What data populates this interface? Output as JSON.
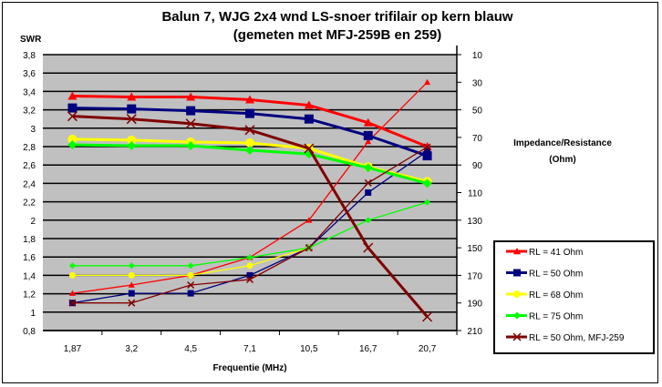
{
  "chart_data": {
    "type": "line",
    "title": "Balun 7, WJG 2x4 wnd LS-snoer trifilair op kern blauw",
    "subtitle": "(gemeten met MFJ-259B en 259)",
    "xlabel": "Frequentie (MHz)",
    "ylabel": "SWR",
    "y2label": "Impedance/Resistance (Ohm)",
    "categories": [
      "1,87",
      "3,2",
      "4,5",
      "7,1",
      "10,5",
      "16,7",
      "20,7"
    ],
    "ylim": [
      0.8,
      3.8
    ],
    "yticks": [
      "0,8",
      "1",
      "1,2",
      "1,4",
      "1,6",
      "1,8",
      "2",
      "2,2",
      "2,4",
      "2,6",
      "2,8",
      "3",
      "3,2",
      "3,4",
      "3,6",
      "3,8"
    ],
    "y2lim": [
      210,
      10
    ],
    "y2ticks": [
      "10",
      "30",
      "50",
      "70",
      "90",
      "110",
      "130",
      "150",
      "170",
      "190",
      "210"
    ],
    "grid": true,
    "legend": "right",
    "series": [
      {
        "name": "RL = 41 Ohm",
        "color": "#ff0000",
        "marker": "triangle",
        "swr": [
          3.35,
          3.34,
          3.34,
          3.31,
          3.25,
          3.06,
          2.8
        ],
        "impedance": [
          183,
          177,
          170,
          157,
          130,
          73,
          30
        ]
      },
      {
        "name": "RL = 50 Ohm",
        "color": "#000080",
        "marker": "square",
        "swr": [
          3.22,
          3.21,
          3.19,
          3.16,
          3.1,
          2.92,
          2.7
        ],
        "impedance": [
          190,
          183,
          183,
          170,
          150,
          110,
          80
        ]
      },
      {
        "name": "RL = 68 Ohm",
        "color": "#ffff00",
        "marker": "circle",
        "swr": [
          2.88,
          2.87,
          2.85,
          2.84,
          2.78,
          2.58,
          2.42
        ],
        "impedance": [
          170,
          170,
          170,
          163,
          150,
          null,
          null
        ]
      },
      {
        "name": "RL = 75 Ohm",
        "color": "#00ff00",
        "marker": "diamond",
        "swr": [
          2.82,
          2.81,
          2.81,
          2.76,
          2.72,
          2.57,
          2.4
        ],
        "impedance": [
          163,
          163,
          163,
          157,
          150,
          130,
          117
        ]
      },
      {
        "name": "RL = 50 Ohm, MFJ-259",
        "color": "#800000",
        "marker": "x",
        "swr": [
          3.13,
          3.1,
          3.05,
          2.98,
          2.78,
          1.7,
          0.95
        ],
        "impedance": [
          190,
          190,
          177,
          173,
          150,
          103,
          77
        ]
      }
    ]
  }
}
